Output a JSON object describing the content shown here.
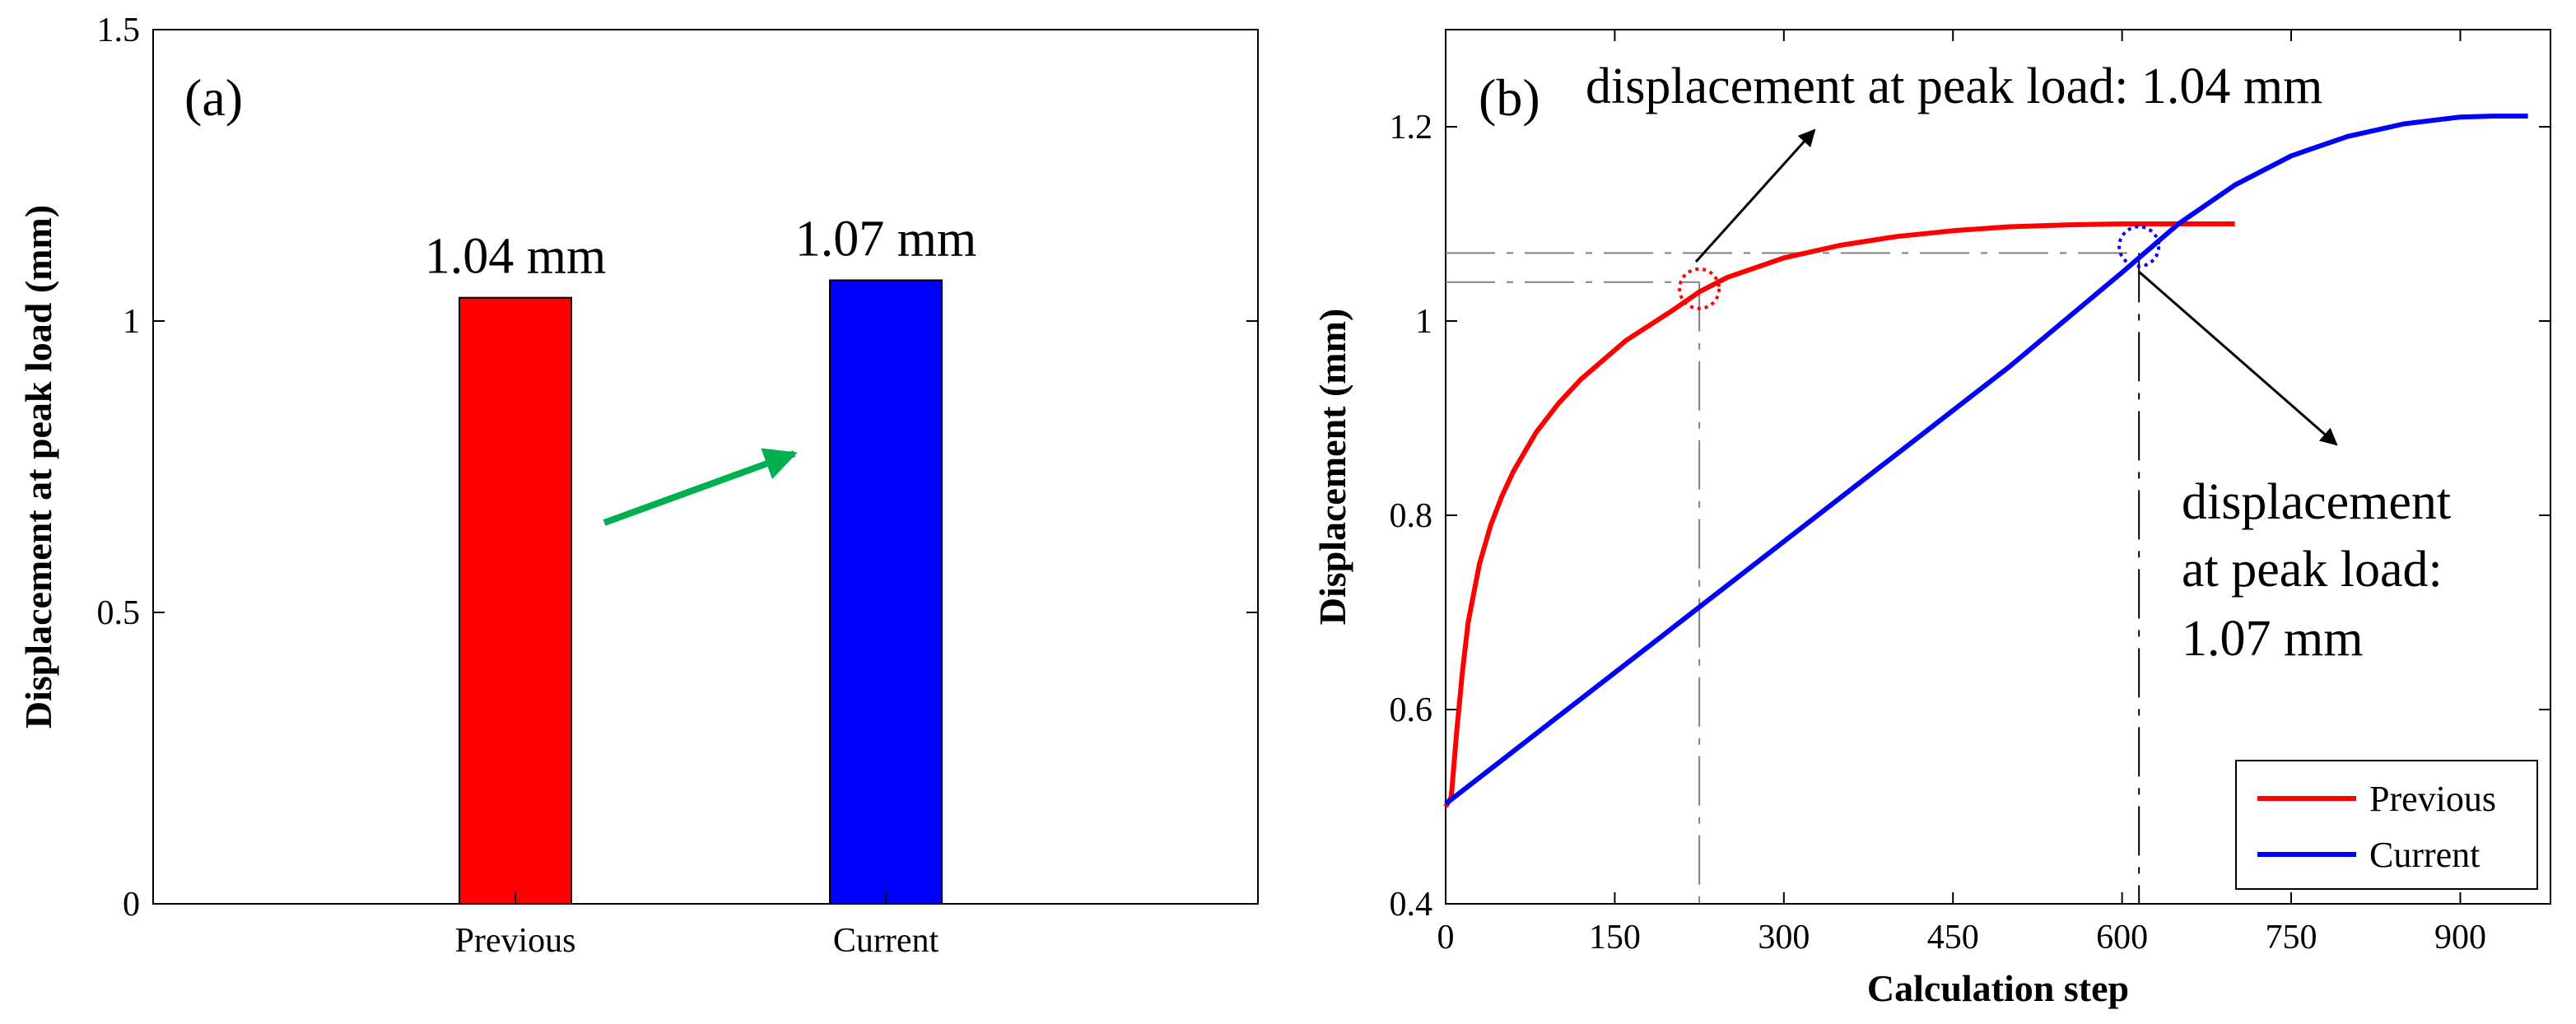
{
  "chart_data": [
    {
      "panel": "(a)",
      "type": "bar",
      "categories": [
        "Previous",
        "Current"
      ],
      "values": [
        1.04,
        1.07
      ],
      "bar_colors": [
        "#ff0000",
        "#0000ff"
      ],
      "data_labels": [
        "1.04 mm",
        "1.07 mm"
      ],
      "xlabel": "",
      "ylabel": "Displacement at peak load (mm)",
      "ylim": [
        0,
        1.5
      ],
      "yticks": [
        "0",
        "0.5",
        "1",
        "1.5"
      ],
      "arrow_color": "#00b050",
      "grid": false
    },
    {
      "panel": "(b)",
      "type": "line",
      "xlabel": "Calculation step",
      "ylabel": "Displacement (mm)",
      "xlim": [
        0,
        980
      ],
      "ylim": [
        0.4,
        1.3
      ],
      "xticks": [
        "0",
        "150",
        "300",
        "450",
        "600",
        "750",
        "900"
      ],
      "yticks": [
        "0.4",
        "0.6",
        "0.8",
        "1",
        "1.2"
      ],
      "legend": {
        "position": "bottom-right",
        "entries": [
          "Previous",
          "Current"
        ]
      },
      "series": [
        {
          "name": "Previous",
          "color": "#ff0000",
          "x": [
            0,
            5,
            10,
            15,
            20,
            25,
            30,
            40,
            50,
            60,
            70,
            80,
            100,
            120,
            140,
            160,
            180,
            200,
            225,
            250,
            300,
            350,
            400,
            450,
            500,
            550,
            600,
            650,
            700
          ],
          "y": [
            0.5,
            0.51,
            0.58,
            0.64,
            0.69,
            0.72,
            0.75,
            0.79,
            0.82,
            0.845,
            0.865,
            0.885,
            0.915,
            0.94,
            0.96,
            0.98,
            0.995,
            1.01,
            1.03,
            1.045,
            1.065,
            1.078,
            1.087,
            1.093,
            1.097,
            1.099,
            1.1,
            1.1,
            1.1
          ]
        },
        {
          "name": "Current",
          "color": "#0000ff",
          "x": [
            0,
            100,
            200,
            300,
            400,
            500,
            600,
            650,
            700,
            750,
            800,
            850,
            900,
            930,
            960
          ],
          "y": [
            0.503,
            0.593,
            0.683,
            0.773,
            0.863,
            0.953,
            1.05,
            1.1,
            1.14,
            1.17,
            1.19,
            1.203,
            1.21,
            1.211,
            1.211
          ]
        }
      ],
      "reference_lines": [
        {
          "name": "previous-peak",
          "x": 225,
          "y": 1.04,
          "color": "#808080"
        },
        {
          "name": "current-peak",
          "x": 615,
          "y": 1.07,
          "color": "#000000"
        }
      ],
      "annotations": [
        {
          "name": "previous-peak-note",
          "lines": [
            "displacement at peak load: 1.04 mm"
          ]
        },
        {
          "name": "current-peak-note",
          "lines": [
            "displacement",
            "at peak load:",
            "1.07 mm"
          ]
        }
      ]
    }
  ]
}
